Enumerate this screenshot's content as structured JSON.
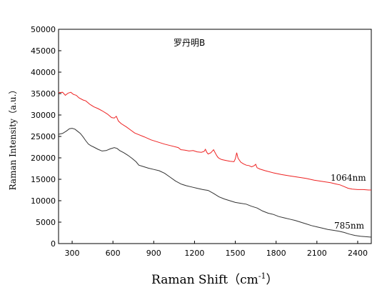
{
  "chart_data": {
    "type": "line",
    "title": "罗丹明B",
    "xlabel": "Raman Shift（cm⁻¹）",
    "xlabel_main": "Raman Shift（cm",
    "xlabel_sup": "-1",
    "xlabel_close": "）",
    "ylabel": "Raman Intensity（a.u.）",
    "xlim": [
      200,
      2500
    ],
    "ylim": [
      0,
      50000
    ],
    "xticks": [
      300,
      600,
      900,
      1200,
      1500,
      1800,
      2100,
      2400
    ],
    "yticks": [
      0,
      5000,
      10000,
      15000,
      20000,
      25000,
      30000,
      35000,
      40000,
      45000,
      50000
    ],
    "grid": false,
    "series": [
      {
        "name": "1064nm",
        "color": "#ee2222",
        "x": [
          200,
          230,
          250,
          270,
          290,
          310,
          330,
          350,
          380,
          400,
          430,
          460,
          490,
          520,
          560,
          590,
          610,
          625,
          640,
          660,
          700,
          730,
          760,
          790,
          830,
          880,
          930,
          980,
          1030,
          1080,
          1100,
          1130,
          1160,
          1190,
          1220,
          1250,
          1270,
          1280,
          1290,
          1300,
          1320,
          1340,
          1360,
          1370,
          1380,
          1400,
          1430,
          1460,
          1490,
          1500,
          1510,
          1520,
          1540,
          1560,
          1580,
          1600,
          1620,
          1640,
          1650,
          1660,
          1680,
          1720,
          1780,
          1840,
          1900,
          1960,
          2020,
          2080,
          2140,
          2200,
          2240,
          2270,
          2300,
          2330,
          2360,
          2400,
          2440,
          2480,
          2500
        ],
        "y": [
          35200,
          35300,
          34600,
          35100,
          35300,
          34800,
          34600,
          34000,
          33500,
          33300,
          32500,
          31900,
          31500,
          31000,
          30200,
          29400,
          29300,
          29700,
          28600,
          28000,
          27200,
          26500,
          25800,
          25400,
          24900,
          24200,
          23700,
          23200,
          22800,
          22400,
          21900,
          21800,
          21600,
          21700,
          21400,
          21300,
          21500,
          22000,
          21300,
          20900,
          21200,
          21900,
          20700,
          20200,
          19900,
          19600,
          19400,
          19200,
          19100,
          19800,
          21200,
          19900,
          19000,
          18600,
          18300,
          18200,
          17900,
          18200,
          18500,
          17700,
          17400,
          17000,
          16500,
          16100,
          15800,
          15500,
          15200,
          14800,
          14500,
          14200,
          13900,
          13700,
          13300,
          12900,
          12700,
          12600,
          12600,
          12500,
          12500
        ]
      },
      {
        "name": "785nm",
        "color": "#333333",
        "x": [
          200,
          230,
          260,
          280,
          300,
          320,
          340,
          360,
          380,
          400,
          420,
          440,
          460,
          490,
          520,
          550,
          580,
          610,
          630,
          650,
          680,
          710,
          740,
          770,
          790,
          820,
          860,
          900,
          940,
          980,
          1020,
          1060,
          1100,
          1140,
          1180,
          1220,
          1260,
          1300,
          1340,
          1380,
          1420,
          1460,
          1500,
          1540,
          1580,
          1620,
          1660,
          1700,
          1740,
          1780,
          1820,
          1860,
          1900,
          1940,
          1980,
          2020,
          2060,
          2100,
          2140,
          2180,
          2220,
          2260,
          2300,
          2340,
          2380,
          2420,
          2460,
          2500
        ],
        "y": [
          25500,
          25700,
          26300,
          26800,
          26900,
          26700,
          26200,
          25700,
          24900,
          24000,
          23200,
          22800,
          22500,
          22000,
          21600,
          21700,
          22100,
          22400,
          22200,
          21700,
          21200,
          20600,
          19900,
          19100,
          18300,
          18000,
          17600,
          17300,
          17000,
          16400,
          15500,
          14600,
          13900,
          13500,
          13200,
          12900,
          12600,
          12400,
          11700,
          10900,
          10400,
          10000,
          9600,
          9400,
          9200,
          8700,
          8300,
          7600,
          7100,
          6800,
          6300,
          6000,
          5700,
          5400,
          5000,
          4600,
          4200,
          3900,
          3600,
          3300,
          3100,
          2900,
          2600,
          2200,
          1900,
          1700,
          1600,
          1500
        ]
      }
    ]
  }
}
